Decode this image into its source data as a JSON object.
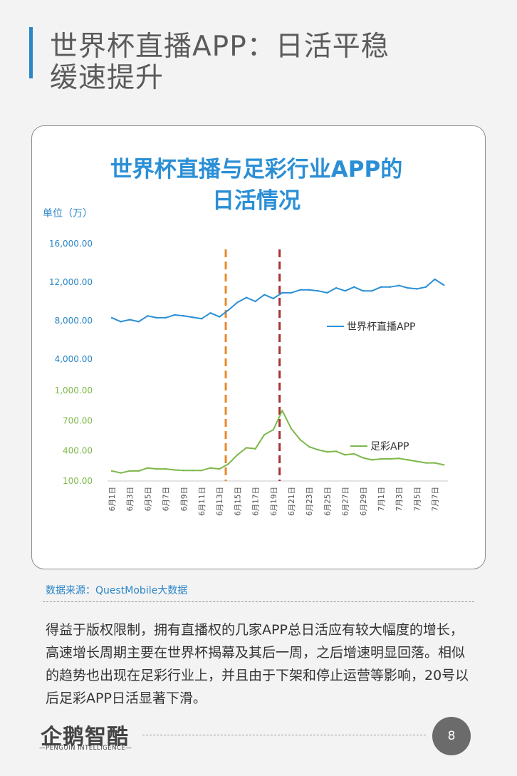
{
  "header": {
    "title_line1": "世界杯直播APP：日活平稳",
    "title_line2": "缓速提升"
  },
  "chart_data": {
    "type": "line",
    "title_line1": "世界杯直播与足彩行业APP的",
    "title_line2": "日活情况",
    "unit_label": "单位（万）",
    "categories": [
      "6月1日",
      "6月2日",
      "6月3日",
      "6月4日",
      "6月5日",
      "6月6日",
      "6月7日",
      "6月8日",
      "6月9日",
      "6月10日",
      "6月11日",
      "6月12日",
      "6月13日",
      "6月14日",
      "6月15日",
      "6月16日",
      "6月17日",
      "6月18日",
      "6月19日",
      "6月20日",
      "6月21日",
      "6月22日",
      "6月23日",
      "6月24日",
      "6月25日",
      "6月26日",
      "6月27日",
      "6月28日",
      "6月29日",
      "6月30日",
      "7月1日",
      "7月2日",
      "7月3日",
      "7月4日",
      "7月5日",
      "7月6日",
      "7月7日",
      "7月8日"
    ],
    "x_tick_labels": [
      "6月1日",
      "6月3日",
      "6月5日",
      "6月7日",
      "6月9日",
      "6月11日",
      "6月13日",
      "6月15日",
      "6月17日",
      "6月19日",
      "6月21日",
      "6月23日",
      "6月25日",
      "6月27日",
      "6月29日",
      "7月1日",
      "7月3日",
      "7月5日",
      "7月7日"
    ],
    "upper_axis": {
      "ticks": [
        "4,000.00",
        "8,000.00",
        "12,000.00",
        "16,000.00"
      ],
      "range": [
        4000,
        16000
      ],
      "color": "#2b86c7"
    },
    "lower_axis": {
      "ticks": [
        "100.00",
        "400.00",
        "700.00",
        "1,000.00"
      ],
      "range": [
        100,
        1000
      ],
      "color": "#7db84a"
    },
    "series": [
      {
        "name": "世界杯直播APP",
        "axis": "upper",
        "color": "#2b8fd6",
        "values": [
          8300,
          7900,
          8100,
          7900,
          8500,
          8300,
          8300,
          8600,
          8500,
          8350,
          8200,
          8800,
          8400,
          9100,
          9900,
          10400,
          10000,
          10700,
          10300,
          10900,
          10900,
          11200,
          11200,
          11100,
          10900,
          11400,
          11100,
          11500,
          11100,
          11100,
          11500,
          11500,
          11650,
          11400,
          11300,
          11500,
          12300,
          11700
        ]
      },
      {
        "name": "足彩APP",
        "axis": "lower",
        "color": "#7db84a",
        "values": [
          200,
          180,
          200,
          200,
          230,
          220,
          220,
          210,
          205,
          205,
          205,
          230,
          220,
          270,
          360,
          430,
          420,
          560,
          610,
          800,
          620,
          510,
          440,
          410,
          390,
          395,
          360,
          370,
          330,
          310,
          320,
          320,
          325,
          310,
          295,
          280,
          280,
          260
        ]
      }
    ],
    "markers": [
      {
        "category": "6月14日",
        "color": "#e8892b"
      },
      {
        "category": "6月20日",
        "color": "#a83232"
      }
    ],
    "grid": false,
    "legend": "inline-right"
  },
  "source": "数据来源：QuestMobile大数据",
  "body": "得益于版权限制，拥有直播权的几家APP总日活应有较大幅度的增长，高速增长周期主要在世界杯揭幕及其后一周，之后增速明显回落。相似的趋势也出现在足彩行业上，并且由于下架和停止运营等影响，20号以后足彩APP日活显著下滑。",
  "footer": {
    "logo_cn": "企鹅智酷",
    "logo_en": "—PENGUIN INTELLIGENCE—",
    "page_number": "8"
  }
}
